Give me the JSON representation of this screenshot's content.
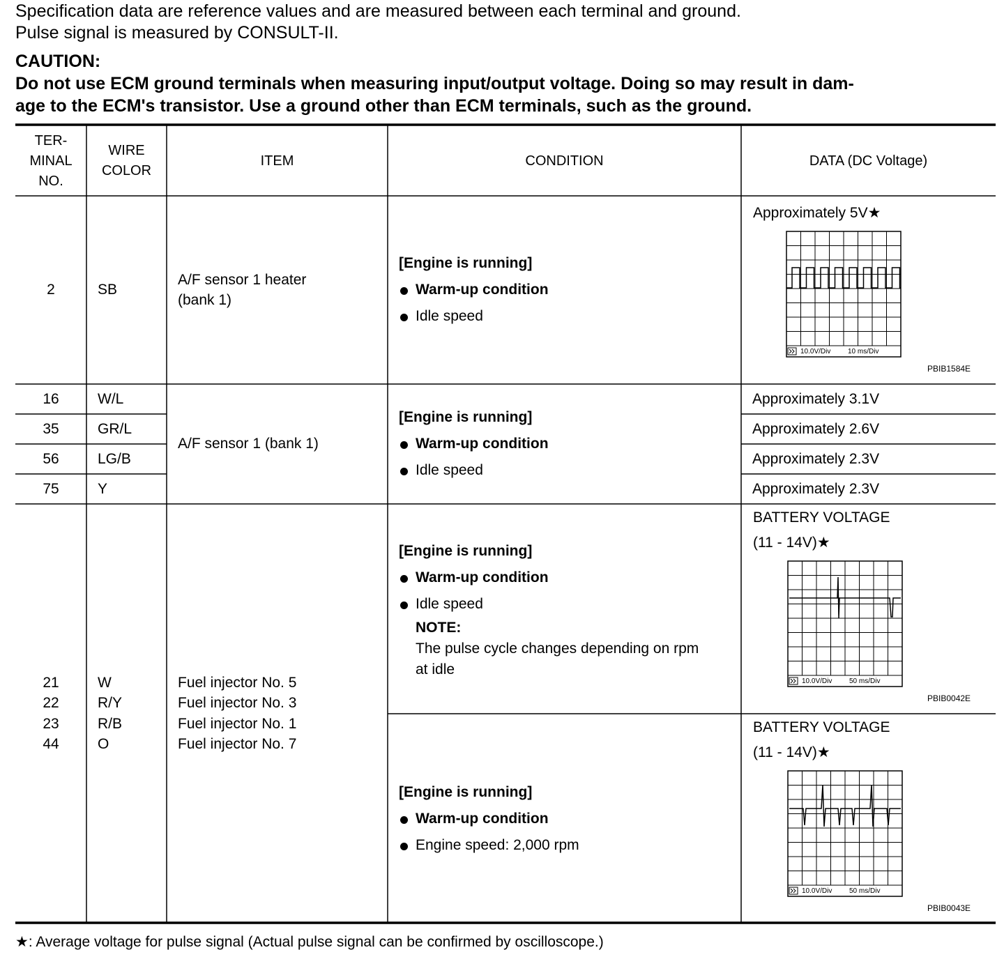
{
  "intro": [
    "Specification data are reference values and are measured between each terminal and ground.",
    "Pulse signal is measured by CONSULT-II."
  ],
  "caution": {
    "title": "CAUTION:",
    "text": "Do not use ECM ground terminals when measuring input/output voltage. Doing so may result in dam-\nage to the ECM's transistor. Use a ground other than ECM terminals, such as the ground."
  },
  "table": {
    "header": [
      "TER-\nMINAL\nNO.",
      "WIRE\nCOLOR",
      "ITEM",
      "CONDITION",
      "DATA (DC Voltage)"
    ],
    "rows": [
      {
        "terminal": "2",
        "wire": "SB",
        "item": "A/F sensor 1 heater\n(bank 1)",
        "condition": {
          "heading": "[Engine is running]",
          "bullets": [
            "Warm-up condition",
            "Idle speed"
          ]
        },
        "data": {
          "text": "Approximately 5V★",
          "scope": {
            "volt_div": "10.0V/Div",
            "time_div": "10 ms/Div",
            "code": "PBIB1584E"
          }
        }
      },
      {
        "item": "A/F sensor 1 (bank 1)",
        "condition": {
          "heading": "[Engine is running]",
          "bullets": [
            "Warm-up condition",
            "Idle speed"
          ]
        },
        "terminals": [
          {
            "terminal": "16",
            "wire": "W/L",
            "data": "Approximately 3.1V"
          },
          {
            "terminal": "35",
            "wire": "GR/L",
            "data": "Approximately 2.6V"
          },
          {
            "terminal": "56",
            "wire": "LG/B",
            "data": "Approximately 2.3V"
          },
          {
            "terminal": "75",
            "wire": "Y",
            "data": "Approximately 2.3V"
          }
        ]
      },
      {
        "terminals": [
          "21",
          "22",
          "23",
          "44"
        ],
        "wires": [
          "W",
          "R/Y",
          "R/B",
          "O"
        ],
        "items": [
          "Fuel injector No. 5",
          "Fuel injector No. 3",
          "Fuel injector No. 1",
          "Fuel injector No. 7"
        ],
        "conditions": [
          {
            "heading": "[Engine is running]",
            "bullets": [
              "Warm-up condition",
              "Idle speed"
            ],
            "note": {
              "title": "NOTE:",
              "text": "The pulse cycle changes depending on rpm\nat idle"
            },
            "data": {
              "text": "BATTERY VOLTAGE",
              "range": "(11 - 14V)★",
              "scope": {
                "volt_div": "10.0V/Div",
                "time_div": "50 ms/Div",
                "code": "PBIB0042E"
              }
            }
          },
          {
            "heading": "[Engine is running]",
            "bullets": [
              "Warm-up condition",
              "Engine speed: 2,000 rpm"
            ],
            "data": {
              "text": "BATTERY VOLTAGE",
              "range": "(11 - 14V)★",
              "scope": {
                "volt_div": "10.0V/Div",
                "time_div": "50 ms/Div",
                "code": "PBIB0043E"
              }
            }
          }
        ]
      }
    ]
  },
  "footnote": "★: Average voltage for pulse signal (Actual pulse signal can be confirmed by oscilloscope.)"
}
